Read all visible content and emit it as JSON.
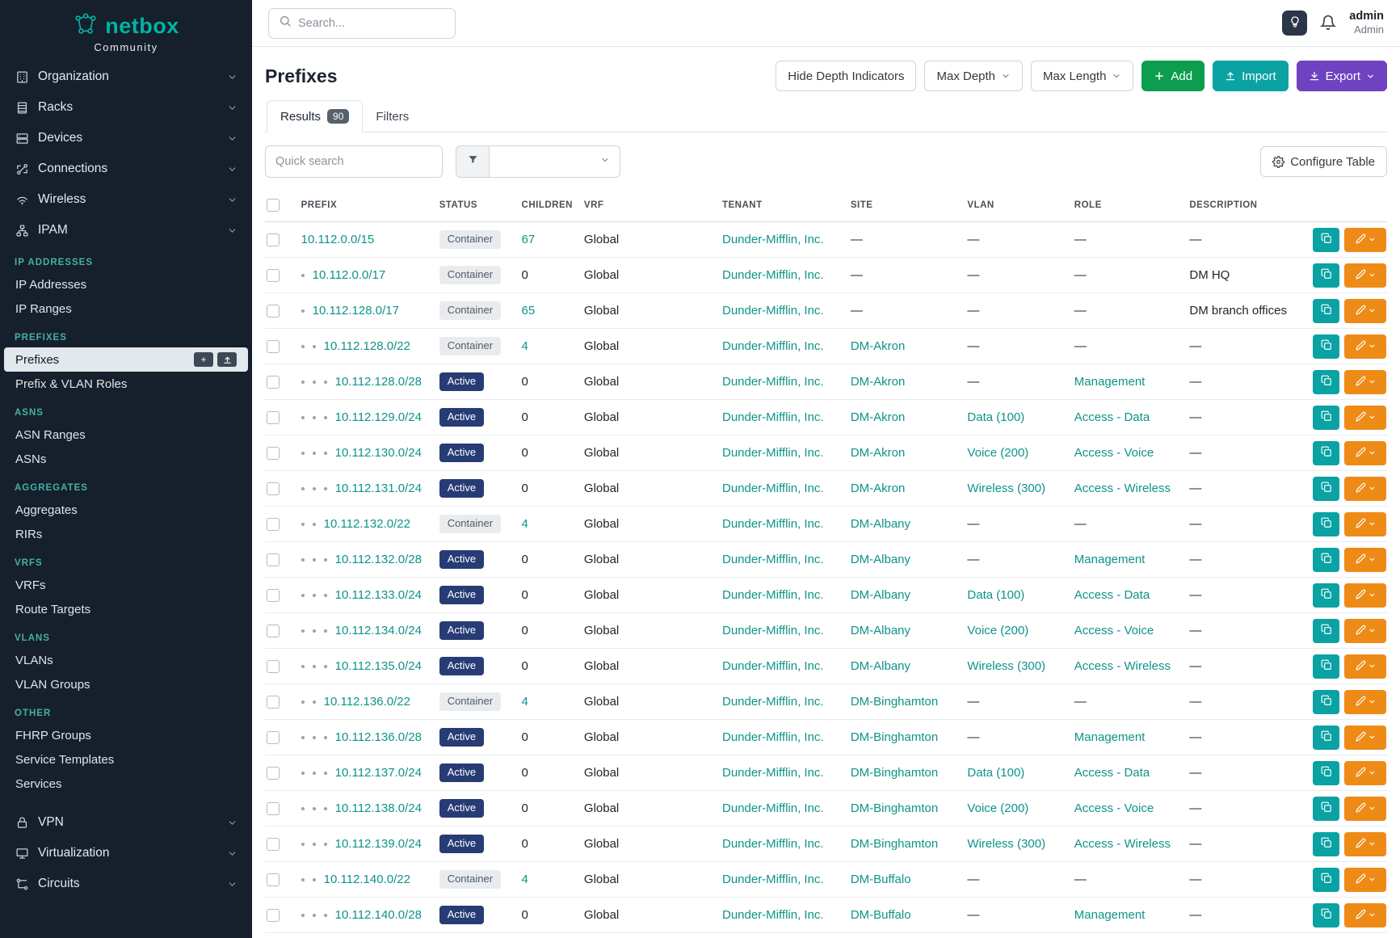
{
  "brand": {
    "name": "netbox",
    "subtitle": "Community"
  },
  "topbar": {
    "search_placeholder": "Search...",
    "user": {
      "name": "admin",
      "role": "Admin"
    }
  },
  "sidebar": {
    "top_groups": [
      {
        "label": "Organization",
        "icon": "organization"
      },
      {
        "label": "Racks",
        "icon": "racks"
      },
      {
        "label": "Devices",
        "icon": "devices"
      },
      {
        "label": "Connections",
        "icon": "connections"
      },
      {
        "label": "Wireless",
        "icon": "wireless"
      },
      {
        "label": "IPAM",
        "icon": "ipam"
      }
    ],
    "sections": [
      {
        "title": "IP ADDRESSES",
        "items": [
          {
            "label": "IP Addresses"
          },
          {
            "label": "IP Ranges"
          }
        ]
      },
      {
        "title": "PREFIXES",
        "items": [
          {
            "label": "Prefixes",
            "active": true
          },
          {
            "label": "Prefix & VLAN Roles"
          }
        ]
      },
      {
        "title": "ASNS",
        "items": [
          {
            "label": "ASN Ranges"
          },
          {
            "label": "ASNs"
          }
        ]
      },
      {
        "title": "AGGREGATES",
        "items": [
          {
            "label": "Aggregates"
          },
          {
            "label": "RIRs"
          }
        ]
      },
      {
        "title": "VRFS",
        "items": [
          {
            "label": "VRFs"
          },
          {
            "label": "Route Targets"
          }
        ]
      },
      {
        "title": "VLANS",
        "items": [
          {
            "label": "VLANs"
          },
          {
            "label": "VLAN Groups"
          }
        ]
      },
      {
        "title": "OTHER",
        "items": [
          {
            "label": "FHRP Groups"
          },
          {
            "label": "Service Templates"
          },
          {
            "label": "Services"
          }
        ]
      }
    ],
    "bottom_groups": [
      {
        "label": "VPN",
        "icon": "vpn"
      },
      {
        "label": "Virtualization",
        "icon": "virtualization"
      },
      {
        "label": "Circuits",
        "icon": "circuits"
      }
    ]
  },
  "page": {
    "title": "Prefixes",
    "toolbar": {
      "hide_depth": "Hide Depth Indicators",
      "max_depth": "Max Depth",
      "max_length": "Max Length",
      "add": "Add",
      "import": "Import",
      "export": "Export"
    },
    "tabs": [
      {
        "label": "Results",
        "badge": "90"
      },
      {
        "label": "Filters"
      }
    ],
    "quick_search_placeholder": "Quick search",
    "configure_table": "Configure Table"
  },
  "table": {
    "columns": [
      "PREFIX",
      "STATUS",
      "CHILDREN",
      "VRF",
      "TENANT",
      "SITE",
      "VLAN",
      "ROLE",
      "DESCRIPTION"
    ],
    "rows": [
      {
        "depth": 0,
        "prefix": "10.112.0.0/15",
        "status": "Container",
        "children": "67",
        "vrf": "Global",
        "tenant": "Dunder-Mifflin, Inc.",
        "site": "—",
        "vlan": "—",
        "role": "—",
        "description": "—"
      },
      {
        "depth": 1,
        "prefix": "10.112.0.0/17",
        "status": "Container",
        "children": "0",
        "vrf": "Global",
        "tenant": "Dunder-Mifflin, Inc.",
        "site": "—",
        "vlan": "—",
        "role": "—",
        "description": "DM HQ"
      },
      {
        "depth": 1,
        "prefix": "10.112.128.0/17",
        "status": "Container",
        "children": "65",
        "vrf": "Global",
        "tenant": "Dunder-Mifflin, Inc.",
        "site": "—",
        "vlan": "—",
        "role": "—",
        "description": "DM branch offices"
      },
      {
        "depth": 2,
        "prefix": "10.112.128.0/22",
        "status": "Container",
        "children": "4",
        "vrf": "Global",
        "tenant": "Dunder-Mifflin, Inc.",
        "site": "DM-Akron",
        "vlan": "—",
        "role": "—",
        "description": "—"
      },
      {
        "depth": 3,
        "prefix": "10.112.128.0/28",
        "status": "Active",
        "children": "0",
        "vrf": "Global",
        "tenant": "Dunder-Mifflin, Inc.",
        "site": "DM-Akron",
        "vlan": "—",
        "role": "Management",
        "description": "—"
      },
      {
        "depth": 3,
        "prefix": "10.112.129.0/24",
        "status": "Active",
        "children": "0",
        "vrf": "Global",
        "tenant": "Dunder-Mifflin, Inc.",
        "site": "DM-Akron",
        "vlan": "Data (100)",
        "role": "Access - Data",
        "description": "—"
      },
      {
        "depth": 3,
        "prefix": "10.112.130.0/24",
        "status": "Active",
        "children": "0",
        "vrf": "Global",
        "tenant": "Dunder-Mifflin, Inc.",
        "site": "DM-Akron",
        "vlan": "Voice (200)",
        "role": "Access - Voice",
        "description": "—"
      },
      {
        "depth": 3,
        "prefix": "10.112.131.0/24",
        "status": "Active",
        "children": "0",
        "vrf": "Global",
        "tenant": "Dunder-Mifflin, Inc.",
        "site": "DM-Akron",
        "vlan": "Wireless (300)",
        "role": "Access - Wireless",
        "description": "—"
      },
      {
        "depth": 2,
        "prefix": "10.112.132.0/22",
        "status": "Container",
        "children": "4",
        "vrf": "Global",
        "tenant": "Dunder-Mifflin, Inc.",
        "site": "DM-Albany",
        "vlan": "—",
        "role": "—",
        "description": "—"
      },
      {
        "depth": 3,
        "prefix": "10.112.132.0/28",
        "status": "Active",
        "children": "0",
        "vrf": "Global",
        "tenant": "Dunder-Mifflin, Inc.",
        "site": "DM-Albany",
        "vlan": "—",
        "role": "Management",
        "description": "—"
      },
      {
        "depth": 3,
        "prefix": "10.112.133.0/24",
        "status": "Active",
        "children": "0",
        "vrf": "Global",
        "tenant": "Dunder-Mifflin, Inc.",
        "site": "DM-Albany",
        "vlan": "Data (100)",
        "role": "Access - Data",
        "description": "—"
      },
      {
        "depth": 3,
        "prefix": "10.112.134.0/24",
        "status": "Active",
        "children": "0",
        "vrf": "Global",
        "tenant": "Dunder-Mifflin, Inc.",
        "site": "DM-Albany",
        "vlan": "Voice (200)",
        "role": "Access - Voice",
        "description": "—"
      },
      {
        "depth": 3,
        "prefix": "10.112.135.0/24",
        "status": "Active",
        "children": "0",
        "vrf": "Global",
        "tenant": "Dunder-Mifflin, Inc.",
        "site": "DM-Albany",
        "vlan": "Wireless (300)",
        "role": "Access - Wireless",
        "description": "—"
      },
      {
        "depth": 2,
        "prefix": "10.112.136.0/22",
        "status": "Container",
        "children": "4",
        "vrf": "Global",
        "tenant": "Dunder-Mifflin, Inc.",
        "site": "DM-Binghamton",
        "vlan": "—",
        "role": "—",
        "description": "—"
      },
      {
        "depth": 3,
        "prefix": "10.112.136.0/28",
        "status": "Active",
        "children": "0",
        "vrf": "Global",
        "tenant": "Dunder-Mifflin, Inc.",
        "site": "DM-Binghamton",
        "vlan": "—",
        "role": "Management",
        "description": "—"
      },
      {
        "depth": 3,
        "prefix": "10.112.137.0/24",
        "status": "Active",
        "children": "0",
        "vrf": "Global",
        "tenant": "Dunder-Mifflin, Inc.",
        "site": "DM-Binghamton",
        "vlan": "Data (100)",
        "role": "Access - Data",
        "description": "—"
      },
      {
        "depth": 3,
        "prefix": "10.112.138.0/24",
        "status": "Active",
        "children": "0",
        "vrf": "Global",
        "tenant": "Dunder-Mifflin, Inc.",
        "site": "DM-Binghamton",
        "vlan": "Voice (200)",
        "role": "Access - Voice",
        "description": "—"
      },
      {
        "depth": 3,
        "prefix": "10.112.139.0/24",
        "status": "Active",
        "children": "0",
        "vrf": "Global",
        "tenant": "Dunder-Mifflin, Inc.",
        "site": "DM-Binghamton",
        "vlan": "Wireless (300)",
        "role": "Access - Wireless",
        "description": "—"
      },
      {
        "depth": 2,
        "prefix": "10.112.140.0/22",
        "status": "Container",
        "children": "4",
        "vrf": "Global",
        "tenant": "Dunder-Mifflin, Inc.",
        "site": "DM-Buffalo",
        "vlan": "—",
        "role": "—",
        "description": "—"
      },
      {
        "depth": 3,
        "prefix": "10.112.140.0/28",
        "status": "Active",
        "children": "0",
        "vrf": "Global",
        "tenant": "Dunder-Mifflin, Inc.",
        "site": "DM-Buffalo",
        "vlan": "—",
        "role": "Management",
        "description": "—"
      }
    ]
  },
  "colors": {
    "sidebar_bg": "#161f2c",
    "brand_teal": "#00b3a4",
    "link_teal": "#0d9488",
    "active_badge": "#273c75",
    "container_badge_bg": "#e9ecef",
    "add_green": "#0c9e4e",
    "import_teal": "#0aa2a2",
    "export_purple": "#6f42c1",
    "edit_orange": "#ee8b17"
  }
}
